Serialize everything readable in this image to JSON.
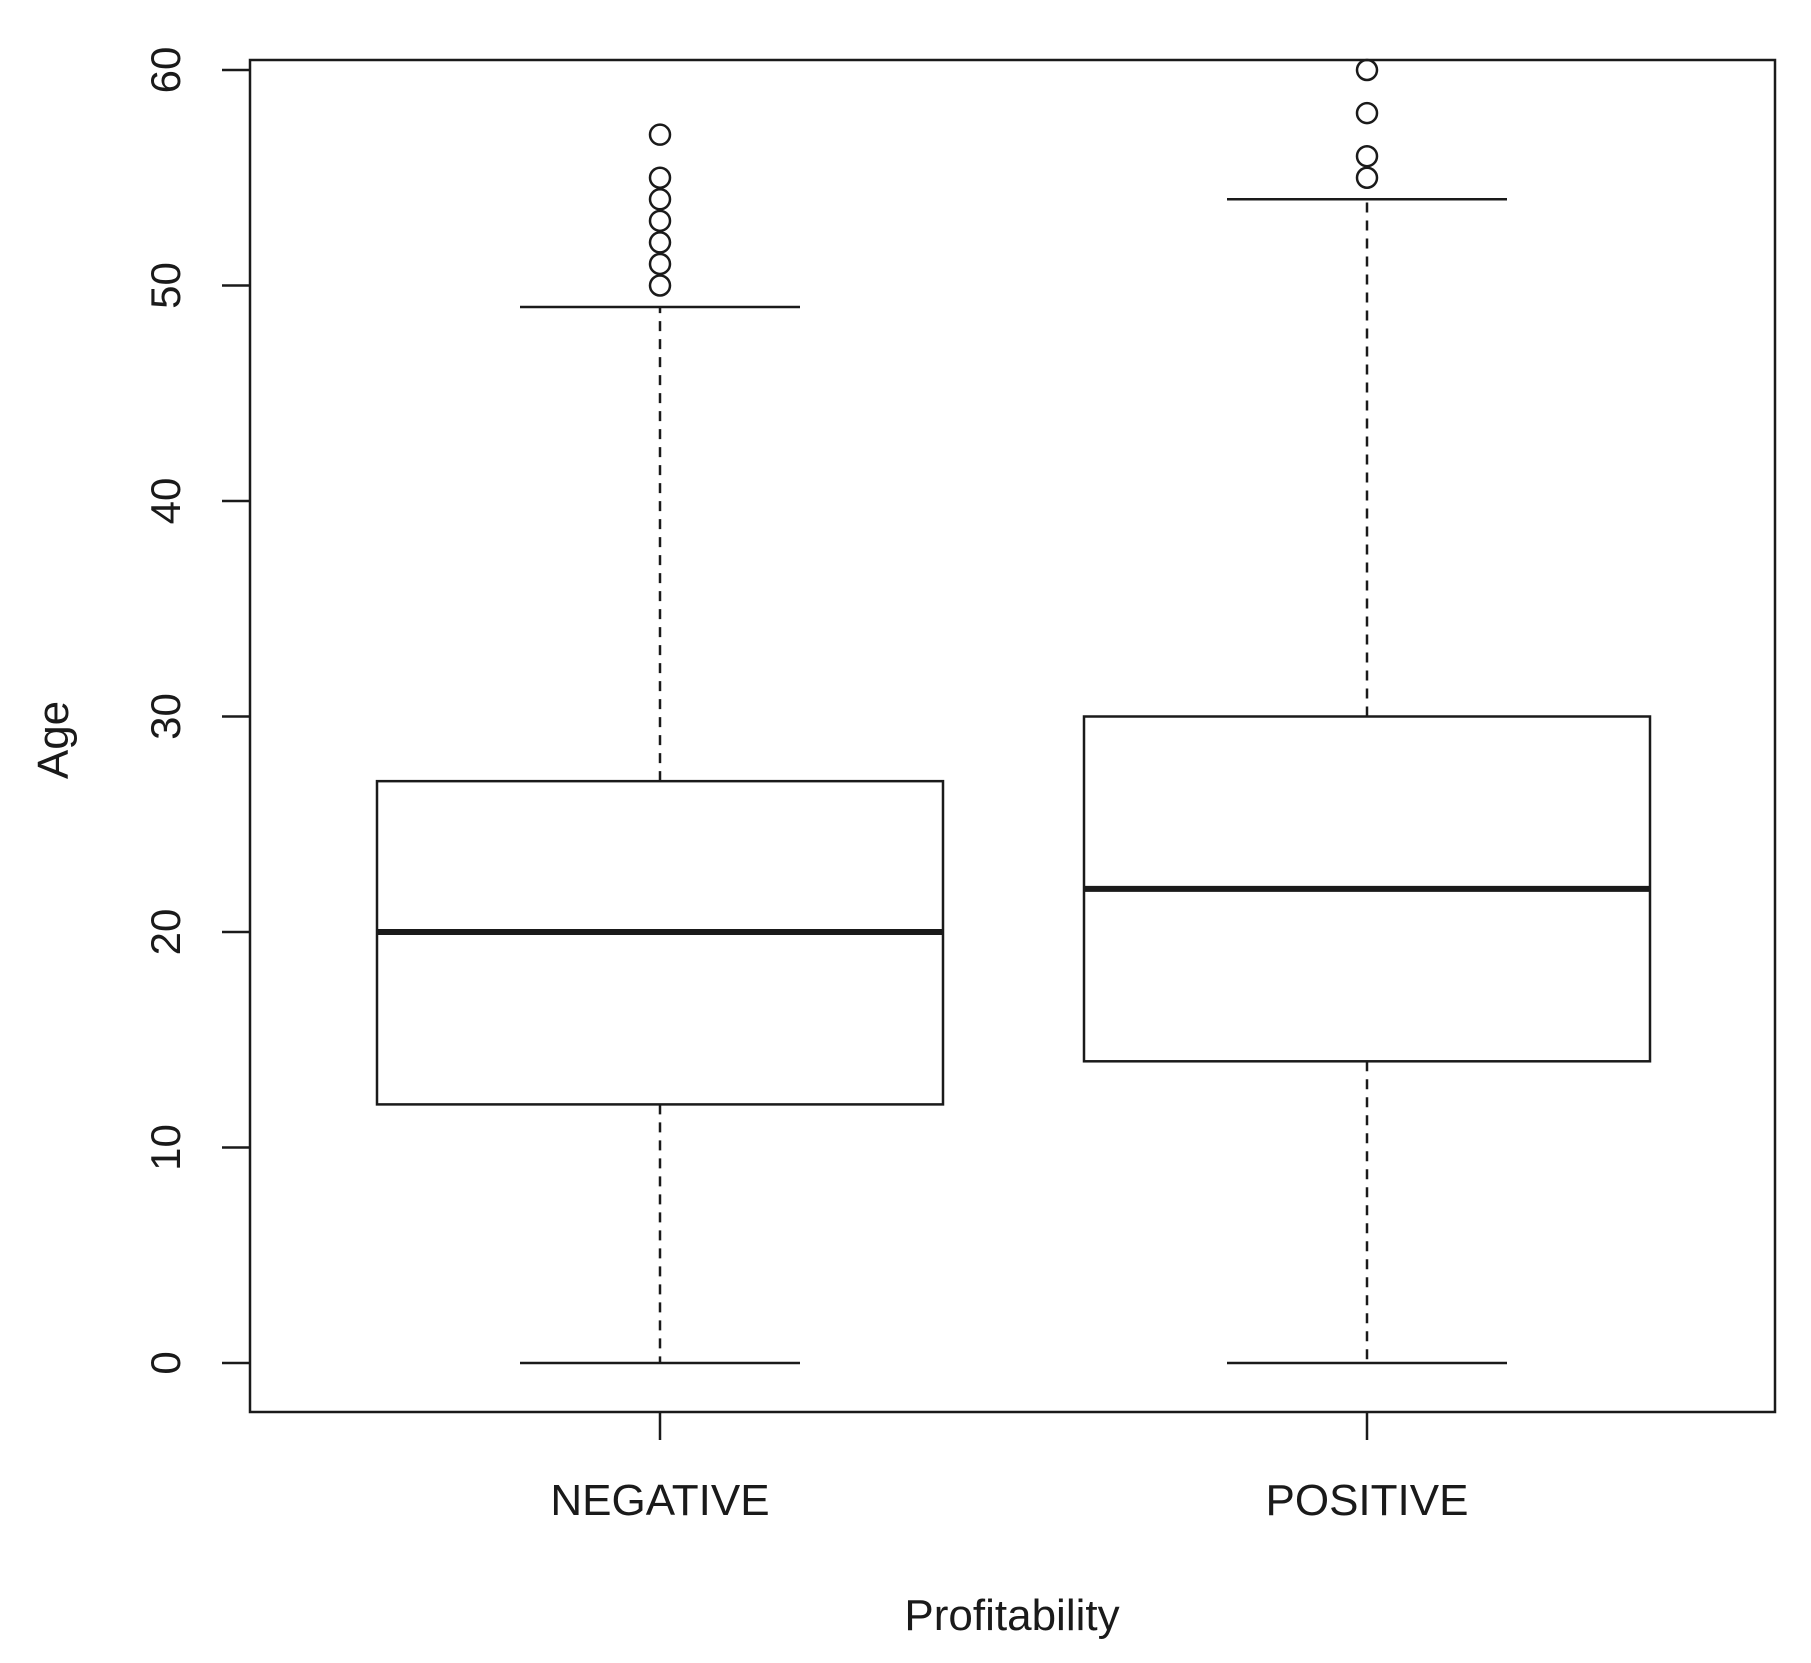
{
  "chart_data": {
    "type": "boxplot",
    "title": "",
    "xlabel": "Profitability",
    "ylabel": "Age",
    "ylim": [
      0,
      60
    ],
    "yticks": [
      0,
      10,
      20,
      30,
      40,
      50,
      60
    ],
    "ytick_labels": [
      "0",
      "10",
      "20",
      "30",
      "40",
      "50",
      "60"
    ],
    "grid": false,
    "categories": [
      "NEGATIVE",
      "POSITIVE"
    ],
    "boxes": [
      {
        "name": "NEGATIVE",
        "whisker_low": 0,
        "q1": 12,
        "median": 20,
        "q3": 27,
        "whisker_high": 49,
        "outliers": [
          50,
          51,
          52,
          53,
          54,
          55,
          57
        ]
      },
      {
        "name": "POSITIVE",
        "whisker_low": 0,
        "q1": 14,
        "median": 22,
        "q3": 30,
        "whisker_high": 54,
        "outliers": [
          55,
          56,
          58,
          60
        ]
      }
    ],
    "colors": {
      "stroke": "#1a1a1a",
      "fill": "#ffffff"
    }
  }
}
